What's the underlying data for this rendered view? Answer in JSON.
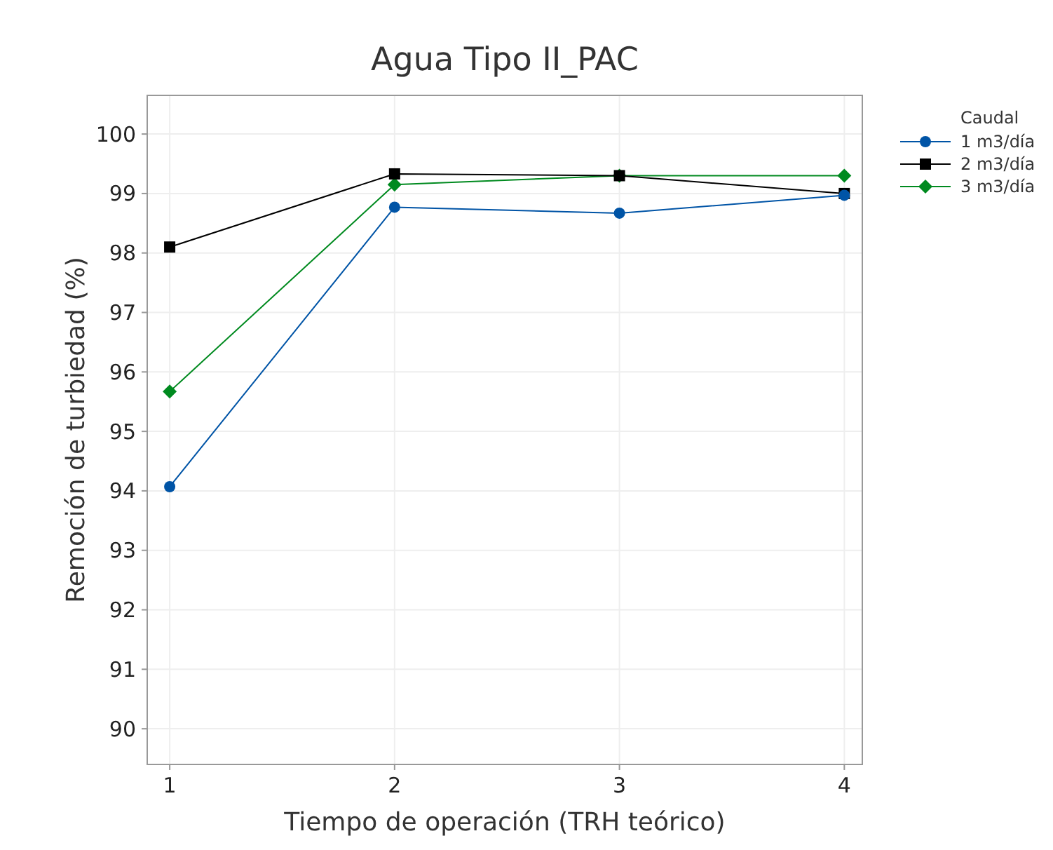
{
  "chart_data": {
    "type": "line",
    "title": "Agua Tipo II_PAC",
    "xlabel": "Tiempo de operación (TRH teórico)",
    "ylabel": "Remoción de turbiedad (%)",
    "legend_title": "Caudal",
    "legend": "right",
    "grid": true,
    "x": [
      1,
      2,
      3,
      4
    ],
    "xlim": [
      0.9,
      4.08
    ],
    "xticks": [
      1,
      2,
      3,
      4
    ],
    "ylim": [
      89.4,
      100.65
    ],
    "yticks": [
      90,
      91,
      92,
      93,
      94,
      95,
      96,
      97,
      98,
      99,
      100
    ],
    "series": [
      {
        "name": "1 m3/día",
        "color": "#0054a6",
        "marker": "circle",
        "values": [
          94.07,
          98.77,
          98.67,
          98.97
        ]
      },
      {
        "name": "2 m3/día",
        "color": "#000000",
        "marker": "square",
        "values": [
          98.1,
          99.33,
          99.3,
          99.0
        ]
      },
      {
        "name": "3 m3/día",
        "color": "#008a1f",
        "marker": "diamond",
        "values": [
          95.67,
          99.15,
          99.3,
          99.3
        ]
      }
    ]
  }
}
